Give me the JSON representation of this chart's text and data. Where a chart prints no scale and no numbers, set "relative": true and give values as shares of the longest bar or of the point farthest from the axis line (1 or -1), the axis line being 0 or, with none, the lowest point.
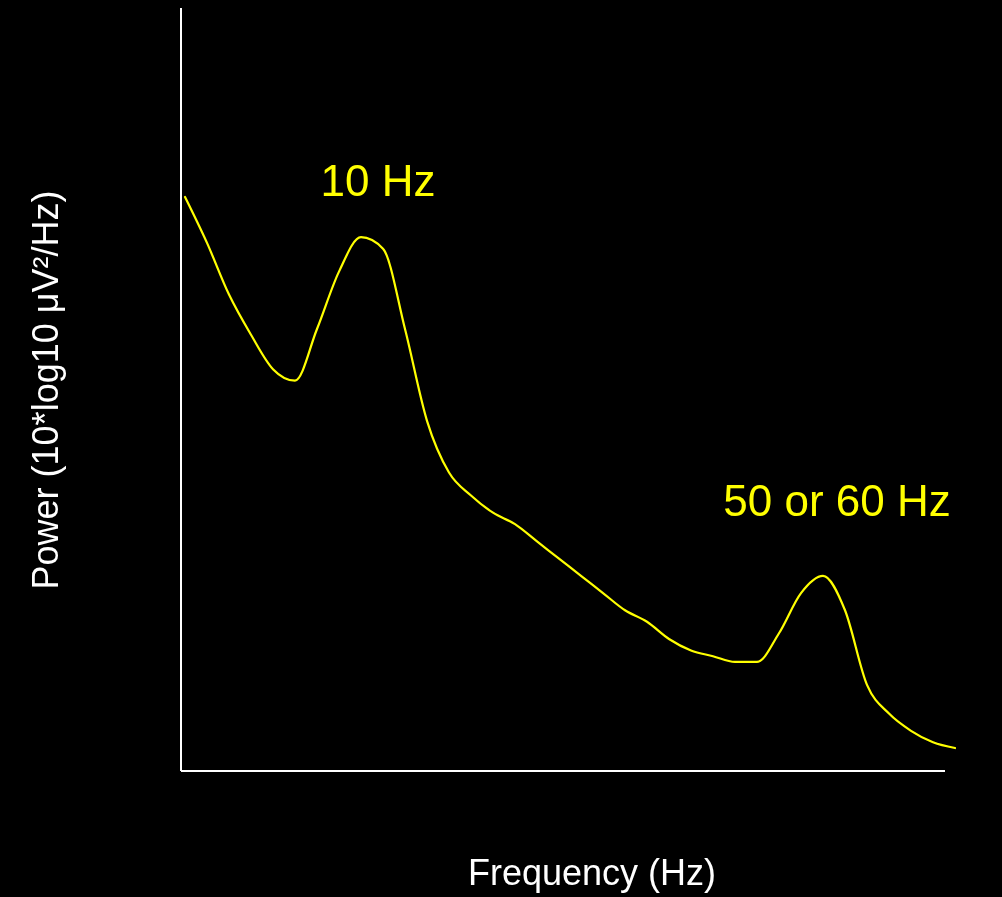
{
  "chart_data": {
    "type": "line",
    "xlabel": "Frequency (Hz)",
    "ylabel": "Power (10*log10 μV²/Hz)",
    "relative": true,
    "categories": [
      null,
      null,
      null,
      null,
      null,
      null,
      null,
      null,
      null,
      null,
      null,
      null,
      null,
      null,
      null,
      null,
      null,
      null,
      null,
      null,
      null,
      null,
      null,
      null,
      null,
      null,
      null,
      null,
      null,
      null,
      null,
      null,
      null,
      null,
      null,
      null
    ],
    "series": [
      {
        "color": "#ffff00",
        "values": [
          1.0,
          0.92,
          0.83,
          0.76,
          0.7,
          0.68,
          0.77,
          0.87,
          0.93,
          0.91,
          0.77,
          0.61,
          0.52,
          0.48,
          0.45,
          0.43,
          0.4,
          0.37,
          0.34,
          0.31,
          0.28,
          0.26,
          0.23,
          0.21,
          0.2,
          0.19,
          0.19,
          0.24,
          0.31,
          0.34,
          0.28,
          0.15,
          0.1,
          0.07,
          0.05,
          0.04
        ]
      }
    ],
    "annotations": [
      "10 Hz",
      "50 or 60 Hz"
    ]
  }
}
